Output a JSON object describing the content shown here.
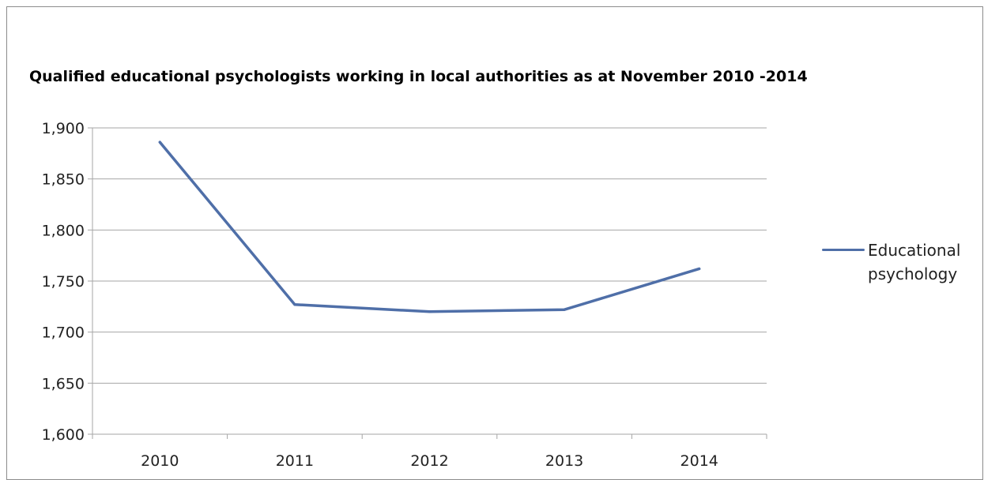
{
  "chart_data": {
    "type": "line",
    "title": "Qualified educational psychologists working in local authorities  as at November 2010 -2014",
    "xlabel": "",
    "ylabel": "",
    "categories": [
      "2010",
      "2011",
      "2012",
      "2013",
      "2014"
    ],
    "series": [
      {
        "name": "Educational psychology",
        "values": [
          1886,
          1727,
          1720,
          1722,
          1762
        ],
        "color": "#4f6fa8"
      }
    ],
    "ylim": [
      1600,
      1900
    ],
    "yticks": [
      1600,
      1650,
      1700,
      1750,
      1800,
      1850,
      1900
    ],
    "ytick_labels": [
      "1,600",
      "1,650",
      "1,700",
      "1,750",
      "1,800",
      "1,850",
      "1,900"
    ],
    "grid": true,
    "gridline_color": "#a6a6a6",
    "legend_position": "right"
  }
}
